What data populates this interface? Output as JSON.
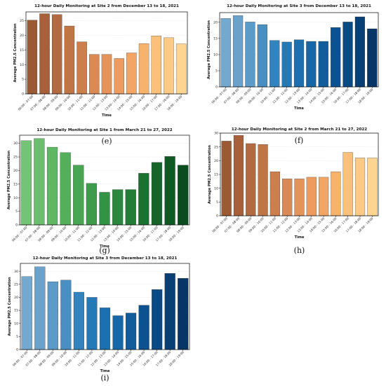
{
  "chart_data": [
    {
      "panel": "(e)",
      "type": "bar",
      "title": "12-hour Daily Monitoring at Site 2 from December 13 to 18, 2021",
      "xlabel": "Time",
      "ylabel": "Average PM2.5 Concentration",
      "ylim": [
        0,
        28
      ],
      "yticks": [
        0,
        5,
        10,
        15,
        20,
        25
      ],
      "grid": "y-dashed",
      "categories": [
        "06:00 - 07:00",
        "07:00 - 08:00",
        "08:00 - 09:00",
        "09:00 - 10:00",
        "10:00 - 11:00",
        "11:00 - 12:00",
        "12:00 - 13:00",
        "13:00 - 14:00",
        "14:00 - 15:00",
        "15:00 - 16:00",
        "16:00 - 17:00",
        "17:00 - 18:00",
        "18:00 - 19:00"
      ],
      "values": [
        25.2,
        27.4,
        27.1,
        23.2,
        17.8,
        13.5,
        13.5,
        12.1,
        14.0,
        17.2,
        19.8,
        19.2,
        17.1
      ],
      "colors": [
        "#9c5a34",
        "#a8603a",
        "#b46a40",
        "#bf7546",
        "#cc7e4d",
        "#d98a55",
        "#e4935b",
        "#ed9b5e",
        "#f2a564",
        "#f7b26c",
        "#fbc07a",
        "#fcca84",
        "#fdd490"
      ]
    },
    {
      "panel": "(f)",
      "type": "bar",
      "title": "12-hour Daily Monitoring at Site 3 from December 13 to 18, 2021",
      "xlabel": "Time",
      "ylabel": "Average PM2.5 Concentration",
      "ylim": [
        0,
        23
      ],
      "yticks": [
        0,
        5,
        10,
        15,
        20
      ],
      "grid": "y-dashed",
      "categories": [
        "06:00 - 07:00",
        "07:00 - 08:00",
        "08:00 - 09:00",
        "09:00 - 10:00",
        "10:00 - 11:00",
        "11:00 - 12:00",
        "12:00 - 13:00",
        "13:00 - 14:00",
        "14:00 - 15:00",
        "15:00 - 16:00",
        "16:00 - 17:00",
        "17:00 - 18:00",
        "18:00 - 19:00"
      ],
      "values": [
        21.2,
        22.1,
        20.1,
        19.3,
        14.4,
        13.9,
        14.6,
        14.1,
        14.1,
        18.4,
        20.1,
        21.7,
        18.0
      ],
      "colors": [
        "#74a9cf",
        "#6aa2cb",
        "#5c9ac7",
        "#4a8fc2",
        "#3283be",
        "#2479b7",
        "#1c70b0",
        "#1667a7",
        "#115d9b",
        "#0d5290",
        "#0a4a84",
        "#083f75",
        "#063566"
      ]
    },
    {
      "panel": "(g)",
      "type": "bar",
      "title": "12-hour Daily Monitoring at Site 1 from March 21 to 27, 2022",
      "xlabel": "Time",
      "ylabel": "Average PM2.5 Concentration",
      "ylim": [
        0,
        33
      ],
      "yticks": [
        0,
        5,
        10,
        15,
        20,
        25,
        30
      ],
      "grid": "y-dashed",
      "categories": [
        "06:00 - 07:00",
        "07:00 - 08:00",
        "08:00 - 09:00",
        "09:00 - 10:00",
        "10:00 - 11:00",
        "11:00 - 12:00",
        "12:00 - 13:00",
        "13:00 - 14:00",
        "14:00 - 15:00",
        "15:00 - 16:00",
        "16:00 - 17:00",
        "17:00 - 18:00",
        "18:00 - 19:00"
      ],
      "values": [
        31.0,
        31.8,
        28.6,
        26.6,
        22.0,
        15.3,
        12.0,
        13.0,
        13.0,
        19.0,
        23.0,
        25.2,
        22.0
      ],
      "colors": [
        "#74c476",
        "#6abe6e",
        "#5fb764",
        "#54af5b",
        "#48a653",
        "#3d9c4b",
        "#339244",
        "#2b883d",
        "#227d36",
        "#1b7130",
        "#15652a",
        "#0f5924",
        "#0a4c1e"
      ]
    },
    {
      "panel": "(h)",
      "type": "bar",
      "title": "12-hour Daily Monitoring at Site 2 from March 21 to 27, 2022",
      "xlabel": "Time",
      "ylabel": "Average PM2.5 Concentration",
      "ylim": [
        0,
        30
      ],
      "yticks": [
        0,
        5,
        10,
        15,
        20,
        25,
        30
      ],
      "grid": "y-dashed",
      "categories": [
        "06:00 - 07:00",
        "07:00 - 08:00",
        "08:00 - 09:00",
        "09:00 - 10:00",
        "10:00 - 11:00",
        "11:00 - 12:00",
        "12:00 - 13:00",
        "13:00 - 14:00",
        "14:00 - 15:00",
        "15:00 - 16:00",
        "16:00 - 17:00",
        "17:00 - 18:00",
        "18:00 - 19:00"
      ],
      "values": [
        27.1,
        29.2,
        26.2,
        25.9,
        16.0,
        13.4,
        13.4,
        14.0,
        14.0,
        16.0,
        23.0,
        21.0,
        21.0
      ],
      "colors": [
        "#9c5a34",
        "#a8603a",
        "#b46a40",
        "#bf7546",
        "#cc7e4d",
        "#d98a55",
        "#e4935b",
        "#ed9b5e",
        "#f2a564",
        "#f7b26c",
        "#fbc07a",
        "#fcca84",
        "#fdd490"
      ]
    },
    {
      "panel": "(i)",
      "type": "bar",
      "title": "12-hour Daily Monitoring at Site 3 from December 13 to 18, 2021",
      "xlabel": "Time",
      "ylabel": "Average PM2.5 Concentration",
      "ylim": [
        0,
        33
      ],
      "yticks": [
        0,
        5,
        10,
        15,
        20,
        25,
        30
      ],
      "grid": "y-dashed",
      "categories": [
        "06:00 - 07:00",
        "07:00 - 08:00",
        "08:00 - 09:00",
        "09:00 - 10:00",
        "10:00 - 11:00",
        "11:00 - 12:00",
        "12:00 - 13:00",
        "13:00 - 14:00",
        "14:00 - 15:00",
        "15:00 - 16:00",
        "16:00 - 17:00",
        "17:00 - 18:00",
        "18:00 - 19:00"
      ],
      "values": [
        28.0,
        31.7,
        26.0,
        26.6,
        22.0,
        20.0,
        16.0,
        13.0,
        14.0,
        17.0,
        23.0,
        29.2,
        27.3
      ],
      "colors": [
        "#74a9cf",
        "#6aa2cb",
        "#5c9ac7",
        "#4a8fc2",
        "#3283be",
        "#2479b7",
        "#1c70b0",
        "#1667a7",
        "#115d9b",
        "#0d5290",
        "#0a4a84",
        "#083f75",
        "#063566"
      ]
    }
  ]
}
